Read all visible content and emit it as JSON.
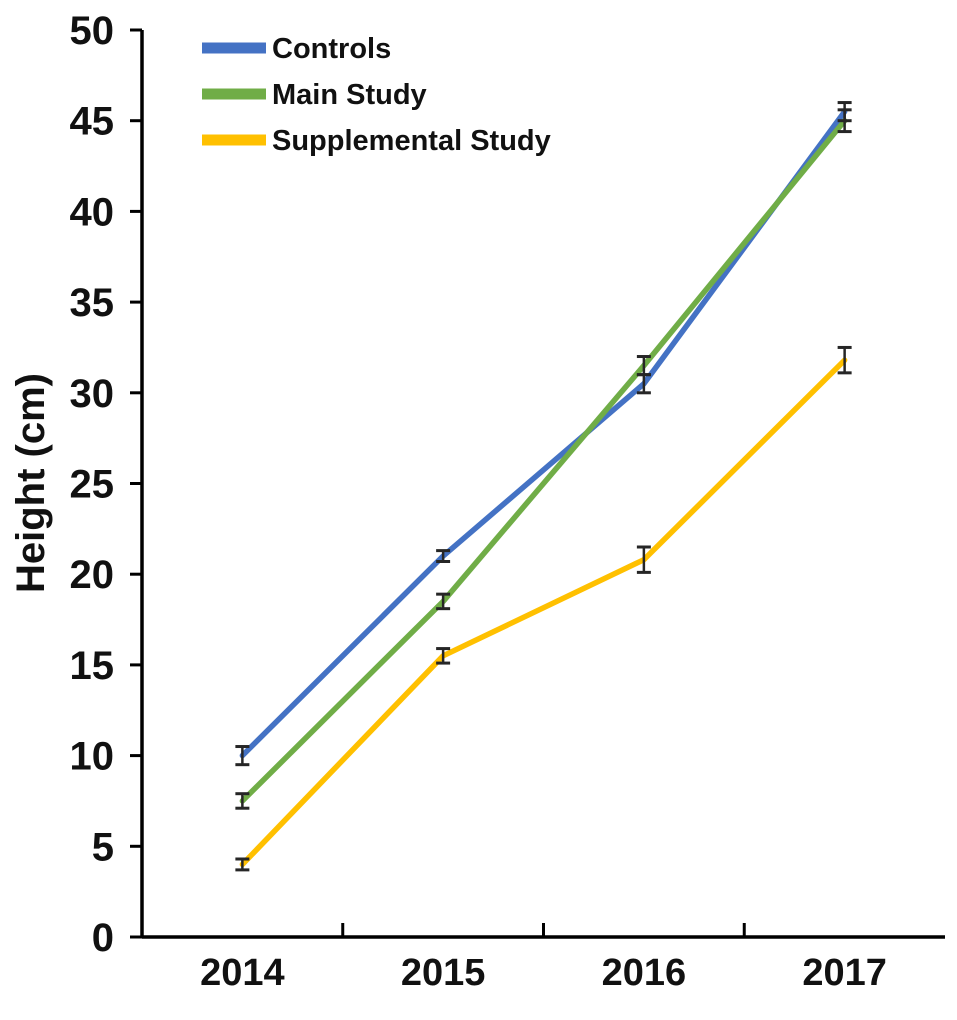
{
  "chart_data": {
    "type": "line",
    "title": "",
    "xlabel": "",
    "ylabel": "Height (cm)",
    "x_categories": [
      "2014",
      "2015",
      "2016",
      "2017"
    ],
    "ylim": [
      0,
      50
    ],
    "ytick_step": 5,
    "grid": false,
    "legend_position": "top-left-inside",
    "error_bars": true,
    "axis_color": "#000000",
    "error_bar_color": "#262626",
    "series": [
      {
        "name": "Controls",
        "color": "#4472C4",
        "values": [
          10.0,
          21.0,
          30.5,
          45.5
        ],
        "errors": [
          0.5,
          0.3,
          0.5,
          0.5
        ]
      },
      {
        "name": "Main Study",
        "color": "#70AD47",
        "values": [
          7.5,
          18.5,
          31.5,
          45.0
        ],
        "errors": [
          0.4,
          0.4,
          0.5,
          0.6
        ]
      },
      {
        "name": "Supplemental Study",
        "color": "#FFC000",
        "values": [
          4.0,
          15.5,
          20.8,
          31.8
        ],
        "errors": [
          0.3,
          0.4,
          0.7,
          0.7
        ]
      }
    ]
  }
}
